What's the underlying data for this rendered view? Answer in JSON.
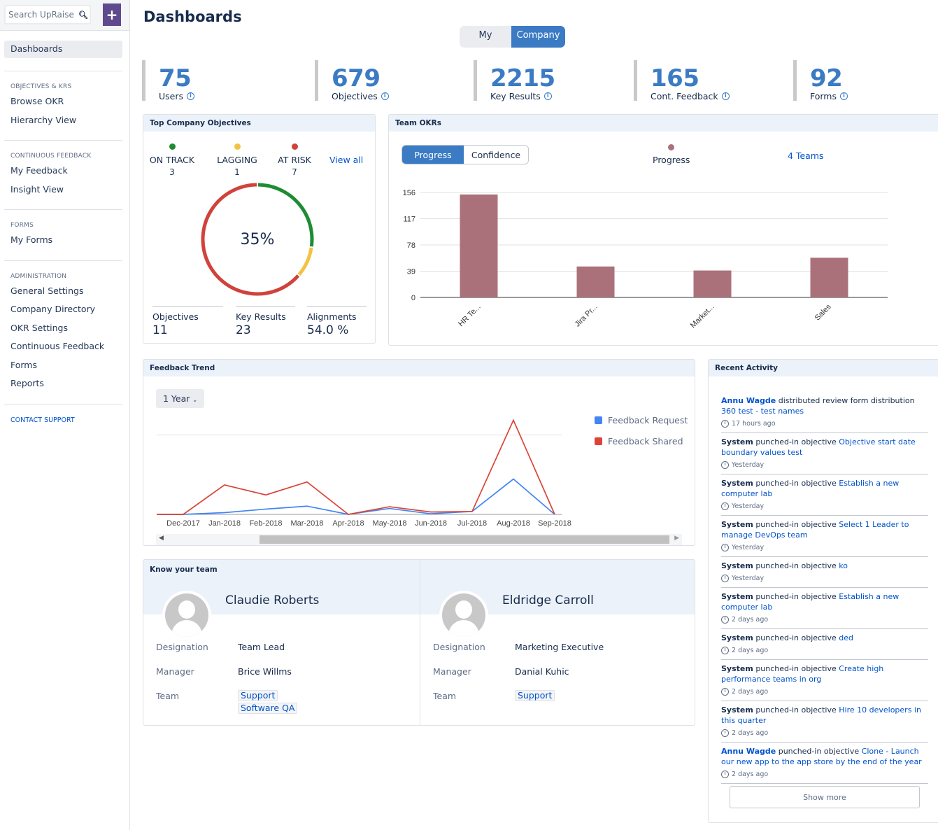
{
  "sidebar": {
    "search_placeholder": "Search UpRaise",
    "add_label": "+",
    "active_item": "Dashboards",
    "sections": [
      {
        "heading": "OBJECTIVES & KRS",
        "items": [
          "Browse OKR",
          "Hierarchy View"
        ]
      },
      {
        "heading": "CONTINUOUS FEEDBACK",
        "items": [
          "My Feedback",
          "Insight View"
        ]
      },
      {
        "heading": "FORMS",
        "items": [
          "My Forms"
        ]
      },
      {
        "heading": "ADMINISTRATION",
        "items": [
          "General Settings",
          "Company Directory",
          "OKR Settings",
          "Continuous Feedback",
          "Forms",
          "Reports"
        ]
      }
    ],
    "contact_support": "CONTACT SUPPORT"
  },
  "header": {
    "title": "Dashboards",
    "toggle": {
      "my": "My",
      "company": "Company",
      "selected": "Company"
    }
  },
  "stats": [
    {
      "value": "75",
      "label": "Users"
    },
    {
      "value": "679",
      "label": "Objectives"
    },
    {
      "value": "2215",
      "label": "Key Results"
    },
    {
      "value": "165",
      "label": "Cont. Feedback"
    },
    {
      "value": "92",
      "label": "Forms"
    }
  ],
  "top_objectives": {
    "title": "Top Company Objectives",
    "statuses": [
      {
        "label": "ON TRACK",
        "count": "3",
        "color": "#1e8c32"
      },
      {
        "label": "LAGGING",
        "count": "1",
        "color": "#f4c242"
      },
      {
        "label": "AT RISK",
        "count": "7",
        "color": "#d0423b"
      }
    ],
    "view_all": "View all",
    "progress_label": "35%",
    "footer": [
      {
        "label": "Objectives",
        "value": "11"
      },
      {
        "label": "Key Results",
        "value": "23"
      },
      {
        "label": "Alignments",
        "value": "54.0 %"
      }
    ]
  },
  "team_okrs": {
    "title": "Team OKRs",
    "tabs": {
      "progress": "Progress",
      "confidence": "Confidence",
      "selected": "Progress"
    },
    "legend_label": "Progress",
    "teams_link": "4 Teams"
  },
  "feedback_trend": {
    "title": "Feedback Trend",
    "range_label": "1 Year",
    "legend": [
      {
        "label": "Feedback Request",
        "color": "#4285f4"
      },
      {
        "label": "Feedback Shared",
        "color": "#db4437"
      }
    ]
  },
  "know_your_team": {
    "title": "Know your team",
    "row_labels": {
      "designation": "Designation",
      "manager": "Manager",
      "team": "Team"
    },
    "members": [
      {
        "name": "Claudie Roberts",
        "designation": "Team Lead",
        "manager": "Brice Willms",
        "teams": [
          "Support",
          "Software QA"
        ]
      },
      {
        "name": "Eldridge Carroll",
        "designation": "Marketing Executive",
        "manager": "Danial Kuhic",
        "teams": [
          "Support"
        ]
      }
    ]
  },
  "recent_activity": {
    "title": "Recent Activity",
    "items": [
      {
        "actor": "Annu Wagde",
        "actor_link": true,
        "action": "distributed review form distribution",
        "target": "360 test - test names",
        "time": "17 hours ago"
      },
      {
        "actor": "System",
        "actor_link": false,
        "action": "punched-in objective",
        "target": "Objective start date boundary values test",
        "time": "Yesterday"
      },
      {
        "actor": "System",
        "actor_link": false,
        "action": "punched-in objective",
        "target": "Establish a new computer lab",
        "time": "Yesterday"
      },
      {
        "actor": "System",
        "actor_link": false,
        "action": "punched-in objective",
        "target": "Select 1 Leader to manage DevOps team",
        "time": "Yesterday"
      },
      {
        "actor": "System",
        "actor_link": false,
        "action": "punched-in objective",
        "target": "ko",
        "time": "Yesterday"
      },
      {
        "actor": "System",
        "actor_link": false,
        "action": "punched-in objective",
        "target": "Establish a new computer lab",
        "time": "2 days ago"
      },
      {
        "actor": "System",
        "actor_link": false,
        "action": "punched-in objective",
        "target": "ded",
        "time": "2 days ago"
      },
      {
        "actor": "System",
        "actor_link": false,
        "action": "punched-in objective",
        "target": "Create high performance teams in org",
        "time": "2 days ago"
      },
      {
        "actor": "System",
        "actor_link": false,
        "action": "punched-in objective",
        "target": "Hire 10 developers in this quarter",
        "time": "2 days ago"
      },
      {
        "actor": "Annu Wagde",
        "actor_link": true,
        "action": "punched-in objective",
        "target": "Clone - Launch our new app to the app store by the end of the year",
        "time": "2 days ago"
      }
    ],
    "show_more": "Show more"
  },
  "chart_data": [
    {
      "type": "pie",
      "title": "Top Company Objectives",
      "categories": [
        "ON TRACK",
        "LAGGING",
        "AT RISK"
      ],
      "values": [
        3,
        1,
        7
      ],
      "colors": [
        "#1e8c32",
        "#f4c242",
        "#d0423b"
      ],
      "center_label": "35%"
    },
    {
      "type": "bar",
      "title": "Team OKRs",
      "categories": [
        "HR Te...",
        "Jira Pr...",
        "Market...",
        "Sales"
      ],
      "series": [
        {
          "name": "Progress",
          "values": [
            153,
            46,
            40,
            59
          ],
          "color": "#ab717a"
        }
      ],
      "yticks": [
        0,
        39,
        78,
        117,
        156
      ],
      "ylim": [
        0,
        156
      ],
      "xlabel": "",
      "ylabel": "",
      "grid": true
    },
    {
      "type": "line",
      "title": "Feedback Trend",
      "categories": [
        "Dec-2017",
        "Jan-2018",
        "Feb-2018",
        "Mar-2018",
        "Apr-2018",
        "May-2018",
        "Jun-2018",
        "Jul-2018",
        "Aug-2018",
        "Sep-2018"
      ],
      "series": [
        {
          "name": "Feedback Request",
          "color": "#4285f4",
          "values": [
            0,
            0.3,
            0.9,
            1.4,
            0,
            1,
            0.1,
            0.5,
            6,
            0
          ]
        },
        {
          "name": "Feedback Shared",
          "color": "#db4437",
          "values": [
            0,
            5,
            3.3,
            5.5,
            0,
            1.3,
            0.4,
            0.5,
            16,
            0
          ]
        }
      ],
      "ylim": [
        0,
        17
      ],
      "gridline": 13.5,
      "legend": "right"
    }
  ]
}
